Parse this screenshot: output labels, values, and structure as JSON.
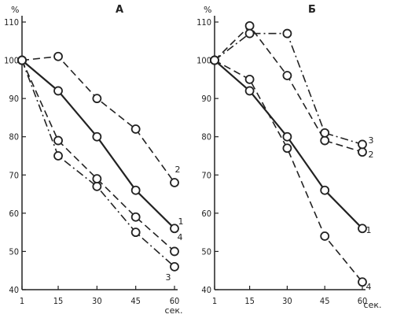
{
  "chart_data": [
    {
      "type": "line",
      "panel_label": "А",
      "xlabel": "сек.",
      "ylabel": "%",
      "x_ticks": [
        1,
        15,
        30,
        45,
        60
      ],
      "y_ticks": [
        40,
        50,
        60,
        70,
        80,
        90,
        100,
        110
      ],
      "xlim": [
        1,
        60
      ],
      "ylim": [
        40,
        110
      ],
      "series": [
        {
          "name": "1",
          "style": "solid",
          "x": [
            1,
            15,
            30,
            45,
            60
          ],
          "y": [
            100,
            92,
            80,
            66,
            56
          ]
        },
        {
          "name": "2",
          "style": "dashed",
          "x": [
            1,
            15,
            30,
            45,
            60
          ],
          "y": [
            100,
            101,
            90,
            82,
            68
          ]
        },
        {
          "name": "3",
          "style": "dashdot",
          "x": [
            1,
            15,
            30,
            45,
            60
          ],
          "y": [
            100,
            75,
            67,
            55,
            46
          ]
        },
        {
          "name": "4",
          "style": "dashed",
          "x": [
            1,
            15,
            30,
            45,
            60
          ],
          "y": [
            100,
            79,
            69,
            59,
            50
          ]
        }
      ]
    },
    {
      "type": "line",
      "panel_label": "Б",
      "xlabel": "сек.",
      "ylabel": "%",
      "x_ticks": [
        1,
        15,
        30,
        45,
        60
      ],
      "y_ticks": [
        40,
        50,
        60,
        70,
        80,
        90,
        100,
        110
      ],
      "xlim": [
        1,
        60
      ],
      "ylim": [
        40,
        110
      ],
      "series": [
        {
          "name": "1",
          "style": "solid",
          "x": [
            1,
            15,
            30,
            45,
            60
          ],
          "y": [
            100,
            92,
            80,
            66,
            56
          ]
        },
        {
          "name": "2",
          "style": "dashed",
          "x": [
            1,
            15,
            30,
            45,
            60
          ],
          "y": [
            100,
            109,
            96,
            79,
            76
          ]
        },
        {
          "name": "3",
          "style": "dashdot",
          "x": [
            1,
            15,
            30,
            45,
            60
          ],
          "y": [
            100,
            107,
            107,
            81,
            78
          ]
        },
        {
          "name": "4",
          "style": "dashed",
          "x": [
            1,
            15,
            30,
            45,
            60
          ],
          "y": [
            100,
            95,
            77,
            54,
            42
          ]
        }
      ]
    }
  ]
}
